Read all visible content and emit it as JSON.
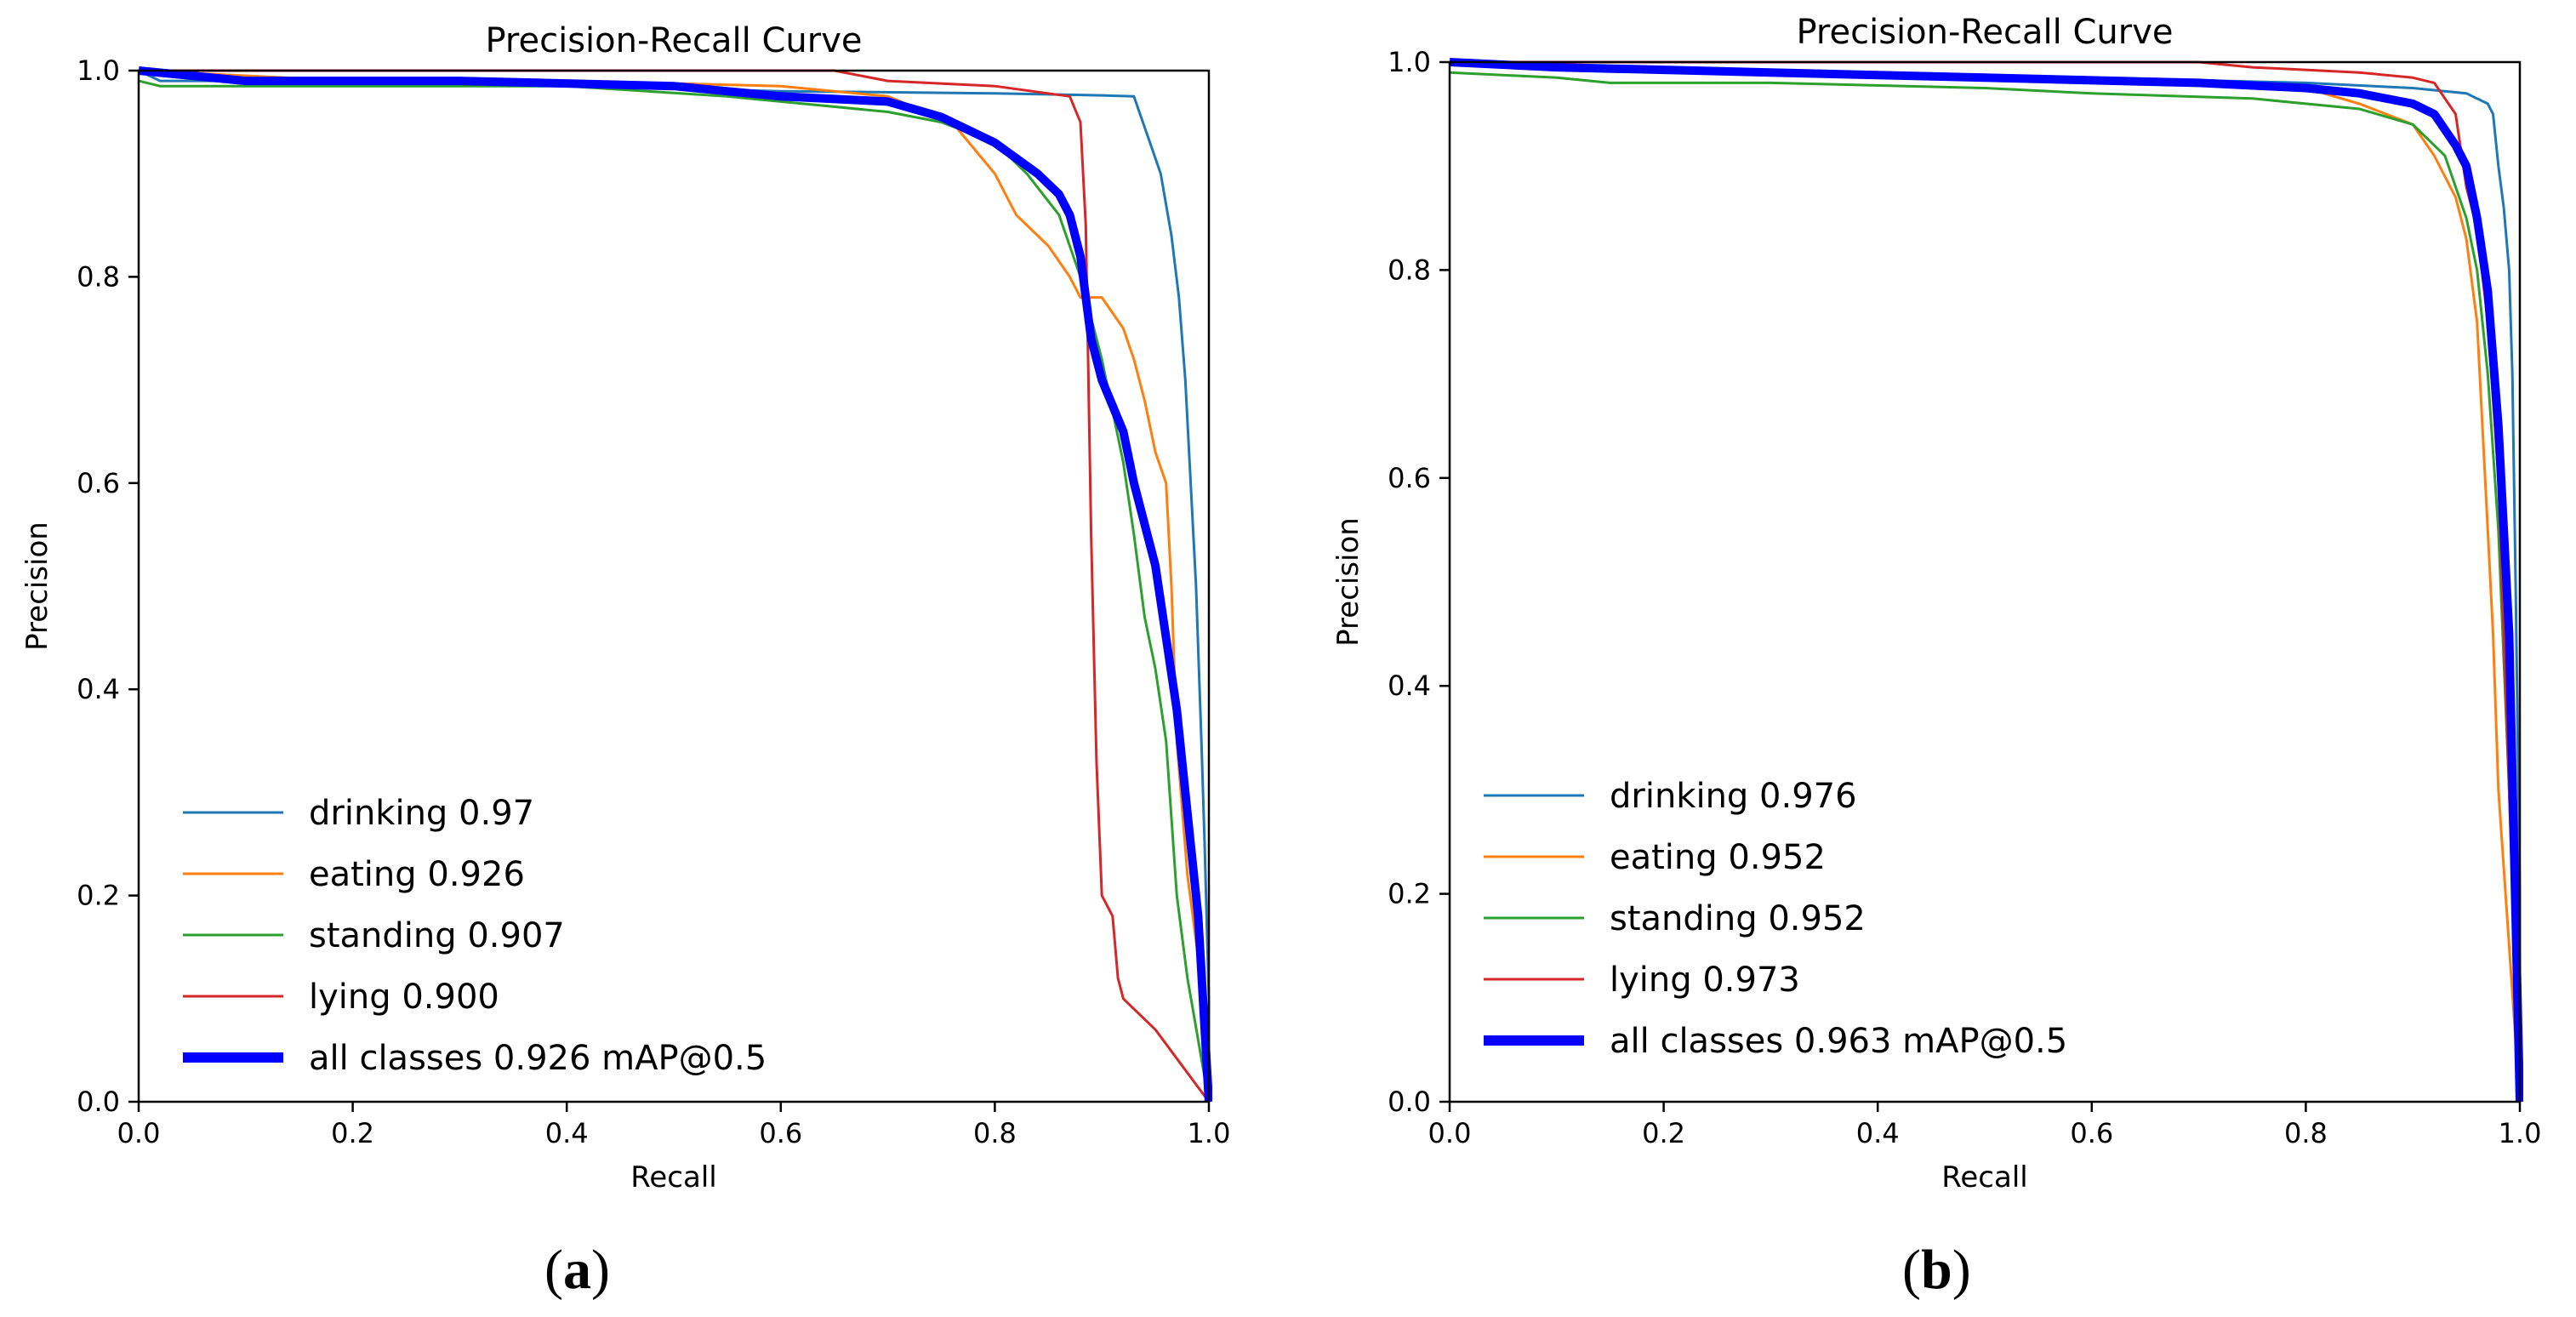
{
  "chart_data": [
    {
      "type": "line",
      "panel_label": "a",
      "title": "Precision-Recall Curve",
      "xlabel": "Recall",
      "ylabel": "Precision",
      "xlim": [
        0.0,
        1.0
      ],
      "ylim": [
        0.0,
        1.0
      ],
      "xticks": [
        "0.0",
        "0.2",
        "0.4",
        "0.6",
        "0.8",
        "1.0"
      ],
      "yticks": [
        "0.0",
        "0.2",
        "0.4",
        "0.6",
        "0.8",
        "1.0"
      ],
      "legend_position": "lower-left",
      "series": [
        {
          "name": "drinking",
          "label": "drinking 0.97",
          "color": "#1f77b4",
          "width": "thin",
          "x": [
            0,
            0.02,
            0.2,
            0.4,
            0.6,
            0.8,
            0.9,
            0.93,
            0.935,
            0.945,
            0.955,
            0.96,
            0.965,
            0.972,
            0.978,
            0.983,
            0.988,
            0.993,
            0.996,
            1.0,
            1.0
          ],
          "y": [
            1.0,
            0.99,
            0.99,
            0.985,
            0.98,
            0.978,
            0.976,
            0.975,
            0.96,
            0.93,
            0.9,
            0.87,
            0.84,
            0.78,
            0.7,
            0.6,
            0.5,
            0.35,
            0.25,
            0.1,
            0.0
          ]
        },
        {
          "name": "eating",
          "label": "eating 0.926",
          "color": "#ff7f0e",
          "width": "thin",
          "x": [
            0,
            0.2,
            0.4,
            0.6,
            0.7,
            0.76,
            0.8,
            0.82,
            0.85,
            0.87,
            0.88,
            0.9,
            0.92,
            0.93,
            0.94,
            0.95,
            0.96,
            0.965,
            0.97,
            0.98,
            0.99,
            1.0
          ],
          "y": [
            1.0,
            0.99,
            0.99,
            0.985,
            0.975,
            0.95,
            0.9,
            0.86,
            0.83,
            0.8,
            0.78,
            0.78,
            0.75,
            0.72,
            0.68,
            0.63,
            0.6,
            0.5,
            0.35,
            0.22,
            0.14,
            0.0
          ]
        },
        {
          "name": "standing",
          "label": "standing 0.907",
          "color": "#2ca02c",
          "width": "thin",
          "x": [
            0,
            0.02,
            0.2,
            0.4,
            0.55,
            0.6,
            0.7,
            0.75,
            0.8,
            0.83,
            0.86,
            0.88,
            0.9,
            0.92,
            0.93,
            0.94,
            0.95,
            0.96,
            0.97,
            0.98,
            1.0
          ],
          "y": [
            0.99,
            0.985,
            0.985,
            0.985,
            0.975,
            0.97,
            0.96,
            0.95,
            0.93,
            0.9,
            0.86,
            0.8,
            0.72,
            0.62,
            0.55,
            0.47,
            0.42,
            0.35,
            0.2,
            0.12,
            0.0
          ]
        },
        {
          "name": "lying",
          "label": "lying 0.900",
          "color": "#d62728",
          "width": "thin",
          "x": [
            0,
            0.1,
            0.3,
            0.5,
            0.65,
            0.7,
            0.8,
            0.87,
            0.88,
            0.885,
            0.89,
            0.895,
            0.9,
            0.91,
            0.915,
            0.92,
            0.93,
            0.95,
            1.0
          ],
          "y": [
            1.0,
            1.0,
            1.0,
            1.0,
            1.0,
            0.99,
            0.985,
            0.975,
            0.95,
            0.85,
            0.55,
            0.33,
            0.2,
            0.18,
            0.12,
            0.1,
            0.09,
            0.07,
            0.0
          ]
        },
        {
          "name": "all classes",
          "label": "all classes 0.926 mAP@0.5",
          "color": "#0000ff",
          "width": "thick",
          "x": [
            0,
            0.1,
            0.3,
            0.5,
            0.6,
            0.7,
            0.75,
            0.8,
            0.84,
            0.86,
            0.87,
            0.88,
            0.89,
            0.9,
            0.92,
            0.93,
            0.94,
            0.95,
            0.96,
            0.97,
            0.98,
            0.99,
            1.0
          ],
          "y": [
            1.0,
            0.99,
            0.99,
            0.985,
            0.975,
            0.97,
            0.955,
            0.93,
            0.9,
            0.88,
            0.86,
            0.82,
            0.74,
            0.7,
            0.65,
            0.6,
            0.56,
            0.52,
            0.45,
            0.38,
            0.28,
            0.18,
            0.0
          ]
        }
      ]
    },
    {
      "type": "line",
      "panel_label": "b",
      "title": "Precision-Recall Curve",
      "xlabel": "Recall",
      "ylabel": "Precision",
      "xlim": [
        0.0,
        1.0
      ],
      "ylim": [
        0.0,
        1.0
      ],
      "xticks": [
        "0.0",
        "0.2",
        "0.4",
        "0.6",
        "0.8",
        "1.0"
      ],
      "yticks": [
        "0.0",
        "0.2",
        "0.4",
        "0.6",
        "0.8",
        "1.0"
      ],
      "legend_position": "lower-left",
      "series": [
        {
          "name": "drinking",
          "label": "drinking 0.976",
          "color": "#1f77b4",
          "width": "thin",
          "x": [
            0,
            0.2,
            0.4,
            0.6,
            0.8,
            0.9,
            0.95,
            0.96,
            0.97,
            0.975,
            0.98,
            0.985,
            0.99,
            0.993,
            0.996,
            1.0,
            1.0
          ],
          "y": [
            1.0,
            0.995,
            0.99,
            0.985,
            0.98,
            0.975,
            0.97,
            0.965,
            0.96,
            0.95,
            0.9,
            0.86,
            0.8,
            0.7,
            0.5,
            0.2,
            0.0
          ]
        },
        {
          "name": "eating",
          "label": "eating 0.952",
          "color": "#ff7f0e",
          "width": "thin",
          "x": [
            0,
            0.2,
            0.4,
            0.6,
            0.8,
            0.85,
            0.9,
            0.92,
            0.94,
            0.95,
            0.96,
            0.965,
            0.97,
            0.975,
            0.98,
            0.99,
            1.0
          ],
          "y": [
            1.0,
            0.99,
            0.985,
            0.98,
            0.975,
            0.96,
            0.94,
            0.91,
            0.87,
            0.83,
            0.75,
            0.65,
            0.55,
            0.45,
            0.3,
            0.15,
            0.0
          ]
        },
        {
          "name": "standing",
          "label": "standing 0.952",
          "color": "#2ca02c",
          "width": "thin",
          "x": [
            0,
            0.1,
            0.15,
            0.3,
            0.5,
            0.6,
            0.75,
            0.85,
            0.9,
            0.93,
            0.95,
            0.96,
            0.97,
            0.98,
            0.99,
            1.0
          ],
          "y": [
            0.99,
            0.985,
            0.98,
            0.98,
            0.975,
            0.97,
            0.965,
            0.955,
            0.94,
            0.91,
            0.85,
            0.8,
            0.7,
            0.55,
            0.3,
            0.0
          ]
        },
        {
          "name": "lying",
          "label": "lying 0.973",
          "color": "#d62728",
          "width": "thin",
          "x": [
            0,
            0.1,
            0.3,
            0.5,
            0.7,
            0.75,
            0.85,
            0.9,
            0.92,
            0.94,
            0.95,
            0.96,
            0.97,
            0.98,
            0.99,
            1.0
          ],
          "y": [
            1.0,
            1.0,
            1.0,
            1.0,
            1.0,
            0.995,
            0.99,
            0.985,
            0.98,
            0.95,
            0.88,
            0.84,
            0.75,
            0.6,
            0.3,
            0.0
          ]
        },
        {
          "name": "all classes",
          "label": "all classes 0.963 mAP@0.5",
          "color": "#0000ff",
          "width": "thick",
          "x": [
            0,
            0.1,
            0.3,
            0.5,
            0.7,
            0.8,
            0.85,
            0.9,
            0.92,
            0.94,
            0.95,
            0.96,
            0.97,
            0.98,
            0.99,
            1.0
          ],
          "y": [
            1.0,
            0.995,
            0.99,
            0.985,
            0.98,
            0.975,
            0.97,
            0.96,
            0.95,
            0.92,
            0.9,
            0.85,
            0.78,
            0.65,
            0.45,
            0.0
          ]
        }
      ]
    }
  ]
}
